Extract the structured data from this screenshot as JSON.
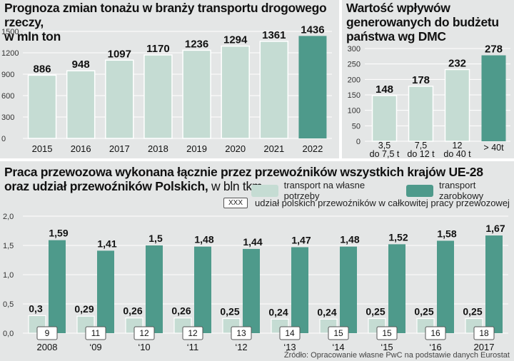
{
  "colors": {
    "panel_bg": "#e4e6e6",
    "bar_light": "#c5dcd3",
    "bar_dark": "#4e9a8b",
    "bar_light_stroke": "#ffffff",
    "grid": "#ffffff",
    "text": "#1a1a1a"
  },
  "chart_data": [
    {
      "id": "tonnage",
      "type": "bar",
      "title": "Prognoza zmian tonażu w branży transportu drogowego rzeczy,",
      "title_line2": "w mln ton",
      "categories": [
        "2015",
        "2016",
        "2017",
        "2018",
        "2019",
        "2020",
        "2021",
        "2022"
      ],
      "values": [
        886,
        948,
        1097,
        1170,
        1236,
        1294,
        1361,
        1436
      ],
      "highlight_index": 7,
      "ylim": [
        0,
        1500
      ],
      "yticks": [
        "0",
        "300",
        "600",
        "900",
        "1200",
        "1500"
      ],
      "grid": true
    },
    {
      "id": "dmc",
      "type": "bar",
      "title": "Wartość wpływów",
      "title_line2": "generowanych do budżetu",
      "title_line3": "państwa wg DMC",
      "categories": [
        "3,5",
        "7,5",
        "12",
        "> 40t"
      ],
      "categories_line2": [
        "do 7,5 t",
        "do 12 t",
        "do 40 t",
        ""
      ],
      "values": [
        148,
        178,
        232,
        278
      ],
      "highlight_index": 3,
      "ylim": [
        0,
        300
      ],
      "yticks": [
        "0",
        "50",
        "100",
        "150",
        "200",
        "250",
        "300"
      ],
      "grid": true
    },
    {
      "id": "transport-work",
      "type": "bar",
      "title": "Praca przewozowa wykonana łącznie przez przewoźników wszystkich krajów UE-28",
      "title_line2_bold": "oraz udział przewoźników Polskich,",
      "title_line2_light": " w bln tkm",
      "categories": [
        "2008",
        "‘09",
        "‘10",
        "‘11",
        "‘12",
        "‘13",
        "‘14",
        "‘15",
        "‘16",
        "2017"
      ],
      "series": [
        {
          "name": "transport na własne potrzeby",
          "values": [
            0.3,
            0.29,
            0.26,
            0.26,
            0.25,
            0.24,
            0.24,
            0.25,
            0.25,
            0.25
          ],
          "labels": [
            "0,3",
            "0,29",
            "0,26",
            "0,26",
            "0,25",
            "0,24",
            "0,24",
            "0,25",
            "0,25",
            "0,25"
          ]
        },
        {
          "name": "transport zarobkowy",
          "values": [
            1.59,
            1.41,
            1.5,
            1.48,
            1.44,
            1.47,
            1.48,
            1.52,
            1.58,
            1.67
          ],
          "labels": [
            "1,59",
            "1,41",
            "1,5",
            "1,48",
            "1,44",
            "1,47",
            "1,48",
            "1,52",
            "1,58",
            "1,67"
          ]
        }
      ],
      "polish_share": [
        "9",
        "11",
        "12",
        "12",
        "13",
        "14",
        "15",
        "15",
        "16",
        "18"
      ],
      "polish_share_legend_box": "XXX",
      "polish_share_legend": "udział polskich przewoźników w całkowitej pracy przewozowej",
      "ylim": [
        0,
        2.0
      ],
      "yticks": [
        "0,0",
        "0,5",
        "1,0",
        "1,5",
        "2,0"
      ],
      "grid": true
    }
  ],
  "source": "Źródło: Opracowanie własne PwC na podstawie danych Eurostat"
}
